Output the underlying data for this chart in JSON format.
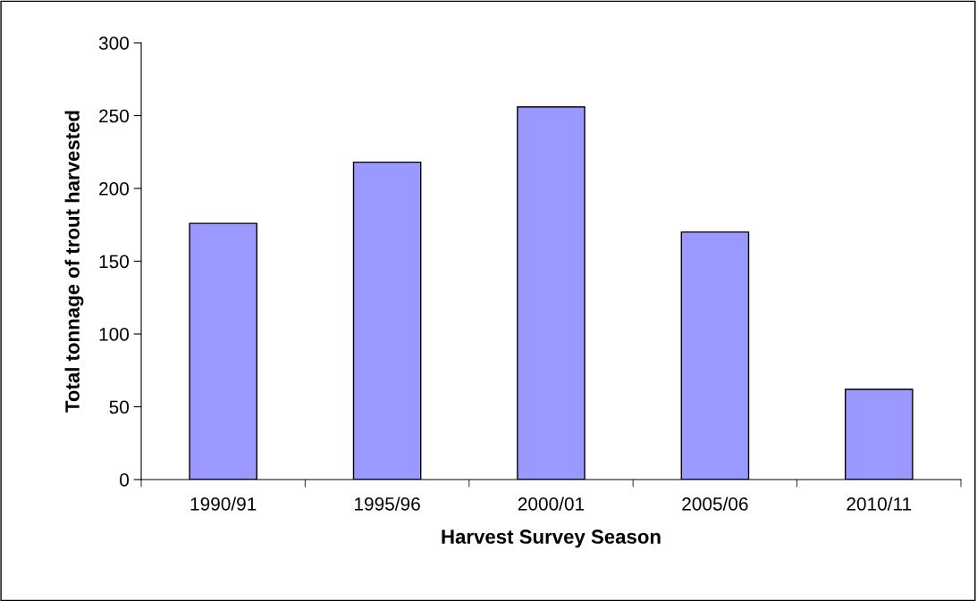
{
  "chart_data": {
    "type": "bar",
    "xlabel": "Harvest Survey Season",
    "ylabel": "Total tonnage of trout harvested",
    "categories": [
      "1990/91",
      "1995/96",
      "2000/01",
      "2005/06",
      "2010/11"
    ],
    "values": [
      176,
      218,
      256,
      170,
      62
    ],
    "color": "#9999ff",
    "ylim": [
      0,
      300
    ],
    "yticks": [
      0,
      50,
      100,
      150,
      200,
      250,
      300
    ],
    "grid": false,
    "legend": false
  }
}
